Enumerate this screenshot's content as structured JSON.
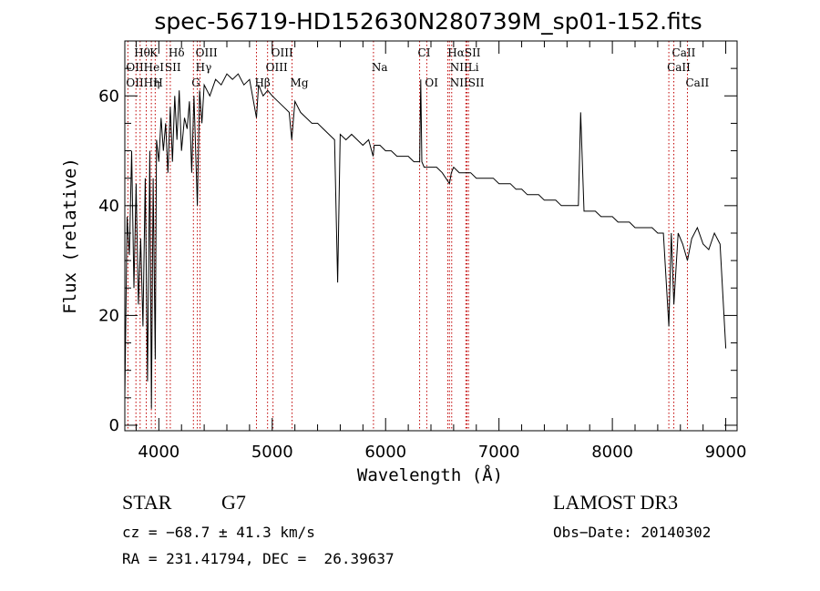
{
  "chart_data": {
    "type": "line",
    "title": "spec-56719-HD152630N280739M_sp01-152.fits",
    "xlabel": "Wavelength (Å)",
    "ylabel": "Flux (relative)",
    "xlim": [
      3700,
      9100
    ],
    "ylim": [
      -1,
      70
    ],
    "xticks": [
      4000,
      5000,
      6000,
      7000,
      8000,
      9000
    ],
    "yticks": [
      0,
      20,
      40,
      60
    ],
    "grid": false,
    "series": [
      {
        "name": "flux",
        "x": [
          3700,
          3720,
          3740,
          3760,
          3780,
          3800,
          3820,
          3840,
          3860,
          3880,
          3900,
          3920,
          3935,
          3950,
          3968,
          3980,
          4000,
          4020,
          4040,
          4060,
          4080,
          4101,
          4120,
          4140,
          4160,
          4180,
          4200,
          4226,
          4250,
          4270,
          4290,
          4310,
          4340,
          4360,
          4380,
          4400,
          4450,
          4500,
          4550,
          4600,
          4650,
          4700,
          4750,
          4800,
          4861,
          4880,
          4920,
          4960,
          5000,
          5050,
          5100,
          5150,
          5172,
          5200,
          5250,
          5300,
          5350,
          5400,
          5450,
          5500,
          5550,
          5577,
          5600,
          5650,
          5700,
          5750,
          5800,
          5850,
          5890,
          5900,
          5950,
          6000,
          6050,
          6100,
          6150,
          6200,
          6250,
          6300,
          6310,
          6320,
          6340,
          6400,
          6450,
          6500,
          6563,
          6580,
          6600,
          6650,
          6700,
          6750,
          6800,
          6850,
          6900,
          6950,
          7000,
          7050,
          7100,
          7150,
          7200,
          7250,
          7300,
          7350,
          7400,
          7450,
          7500,
          7550,
          7600,
          7650,
          7700,
          7720,
          7750,
          7800,
          7850,
          7900,
          7950,
          8000,
          8050,
          8100,
          8150,
          8200,
          8250,
          8300,
          8350,
          8400,
          8450,
          8498,
          8520,
          8542,
          8580,
          8620,
          8662,
          8700,
          8750,
          8800,
          8850,
          8900,
          8950,
          9000
        ],
        "values": [
          5,
          38,
          31,
          50,
          25,
          44,
          22,
          34,
          18,
          45,
          8,
          50,
          3,
          45,
          12,
          52,
          48,
          56,
          50,
          55,
          46,
          58,
          48,
          60,
          52,
          61,
          50,
          56,
          54,
          59,
          46,
          60,
          40,
          61,
          55,
          62,
          60,
          63,
          62,
          64,
          63,
          64,
          62,
          63,
          56,
          62,
          60,
          61,
          60,
          59,
          58,
          57,
          52,
          59,
          57,
          56,
          55,
          55,
          54,
          53,
          52,
          26,
          53,
          52,
          53,
          52,
          51,
          52,
          49,
          51,
          51,
          50,
          50,
          49,
          49,
          49,
          48,
          48,
          63,
          48,
          47,
          47,
          47,
          46,
          44,
          46,
          47,
          46,
          46,
          46,
          45,
          45,
          45,
          45,
          44,
          44,
          44,
          43,
          43,
          42,
          42,
          42,
          41,
          41,
          41,
          40,
          40,
          40,
          40,
          57,
          39,
          39,
          39,
          38,
          38,
          38,
          37,
          37,
          37,
          36,
          36,
          36,
          36,
          35,
          35,
          18,
          35,
          22,
          35,
          33,
          30,
          34,
          36,
          33,
          32,
          35,
          33,
          14
        ]
      }
    ],
    "line_labels": [
      {
        "label": "Hθ",
        "wl": 3798,
        "row": 0
      },
      {
        "label": "K",
        "wl": 3934,
        "row": 0
      },
      {
        "label": "Hδ",
        "wl": 4101,
        "row": 0
      },
      {
        "label": "OIII",
        "wl": 4340,
        "row": 0
      },
      {
        "label": "OIII",
        "wl": 5007,
        "row": 0
      },
      {
        "label": "CI",
        "wl": 6300,
        "row": 0
      },
      {
        "label": "HαSII",
        "wl": 6563,
        "row": 0
      },
      {
        "label": "CaII",
        "wl": 8542,
        "row": 0
      },
      {
        "label": "OIIHeI",
        "wl": 3727,
        "row": 1
      },
      {
        "label": "SII",
        "wl": 4069,
        "row": 1
      },
      {
        "label": "Hγ",
        "wl": 4340,
        "row": 1
      },
      {
        "label": "OIII",
        "wl": 4959,
        "row": 1
      },
      {
        "label": "Na",
        "wl": 5893,
        "row": 1
      },
      {
        "label": "NIILi",
        "wl": 6583,
        "row": 1
      },
      {
        "label": "CaII",
        "wl": 8498,
        "row": 1
      },
      {
        "label": "OIIHη",
        "wl": 3727,
        "row": 2
      },
      {
        "label": "H",
        "wl": 3968,
        "row": 2
      },
      {
        "label": "G",
        "wl": 4305,
        "row": 2
      },
      {
        "label": "Hβ",
        "wl": 4861,
        "row": 2
      },
      {
        "label": "Mg",
        "wl": 5175,
        "row": 2
      },
      {
        "label": "OI",
        "wl": 6363,
        "row": 2
      },
      {
        "label": "NIISII",
        "wl": 6583,
        "row": 2
      },
      {
        "label": "CaII",
        "wl": 8662,
        "row": 2
      }
    ],
    "marker_lines": [
      3727,
      3798,
      3835,
      3889,
      3934,
      3968,
      4069,
      4101,
      4305,
      4340,
      4363,
      4861,
      4959,
      5007,
      5175,
      5893,
      6300,
      6363,
      6548,
      6563,
      6583,
      6708,
      6717,
      6731,
      8498,
      8542,
      8662
    ]
  },
  "info": {
    "object_class": "STAR",
    "subclass": "G7",
    "survey": "LAMOST DR3",
    "cz": "cz = −68.7 ± 41.3 km/s",
    "obs_date": "Obs−Date: 20140302",
    "coords": "RA = 231.41794, DEC =  26.39637"
  }
}
